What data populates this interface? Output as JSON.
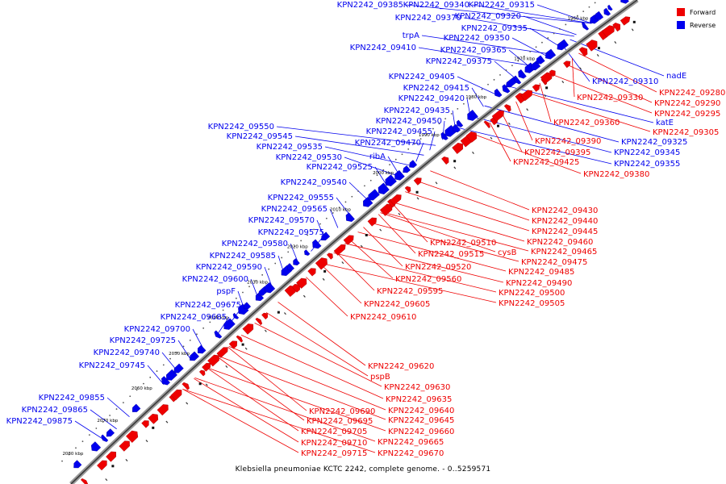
{
  "caption": "Klebsiella pneumoniae KCTC 2242, complete genome. - 0..5259571",
  "legend": [
    {
      "label": "Forward",
      "color": "#ee0000"
    },
    {
      "label": "Reverse",
      "color": "#0000ee"
    }
  ],
  "ticks": [
    "1960 kbp",
    "1970 kbp",
    "1980 kbp",
    "1990 kbp",
    "2000 kbp",
    "2010 kbp",
    "2020 kbp",
    "2030 kbp",
    "2040 kbp",
    "2050 kbp",
    "2060 kbp",
    "2070 kbp",
    "2080 kbp"
  ],
  "reverse_labels": [
    "KPN2242_09385",
    "KPN2242_09340",
    "KPN2242_09315",
    "KPN2242_09370",
    "KPN2242_09320",
    "trpA",
    "KPN2242_09350",
    "KPN2242_09335",
    "KPN2242_09410",
    "KPN2242_09365",
    "KPN2242_09375",
    "KPN2242_09405",
    "KPN2242_09415",
    "KPN2242_09420",
    "KPN2242_09435",
    "KPN2242_09450",
    "KPN2242_09550",
    "KPN2242_09455",
    "KPN2242_09545",
    "KPN2242_09470",
    "KPN2242_09535",
    "ribA",
    "KPN2242_09530",
    "KPN2242_09525",
    "KPN2242_09540",
    "KPN2242_09555",
    "KPN2242_09565",
    "KPN2242_09570",
    "KPN2242_09575",
    "KPN2242_09580",
    "KPN2242_09585",
    "KPN2242_09590",
    "KPN2242_09600",
    "pspF",
    "KPN2242_09675",
    "KPN2242_09685",
    "KPN2242_09700",
    "KPN2242_09725",
    "KPN2242_09740",
    "KPN2242_09745",
    "KPN2242_09855",
    "KPN2242_09865",
    "KPN2242_09875",
    "nadE",
    "KPN2242_09310",
    "katE",
    "KPN2242_09325",
    "KPN2242_09345",
    "KPN2242_09355"
  ],
  "forward_labels": [
    "KPN2242_09280",
    "KPN2242_09290",
    "KPN2242_09330",
    "KPN2242_09295",
    "KPN2242_09305",
    "KPN2242_09360",
    "KPN2242_09390",
    "KPN2242_09395",
    "KPN2242_09425",
    "KPN2242_09380",
    "KPN2242_09430",
    "KPN2242_09440",
    "KPN2242_09445",
    "KPN2242_09460",
    "KPN2242_09510",
    "KPN2242_09465",
    "KPN2242_09515",
    "cysB",
    "KPN2242_09475",
    "KPN2242_09520",
    "KPN2242_09485",
    "KPN2242_09560",
    "KPN2242_09490",
    "KPN2242_09500",
    "KPN2242_09595",
    "KPN2242_09505",
    "KPN2242_09605",
    "KPN2242_09610",
    "KPN2242_09620",
    "pspB",
    "KPN2242_09630",
    "KPN2242_09635",
    "KPN2242_09640",
    "KPN2242_09690",
    "KPN2242_09645",
    "KPN2242_09695",
    "KPN2242_09660",
    "KPN2242_09705",
    "KPN2242_09665",
    "KPN2242_09710",
    "KPN2242_09670",
    "KPN2242_09715"
  ]
}
